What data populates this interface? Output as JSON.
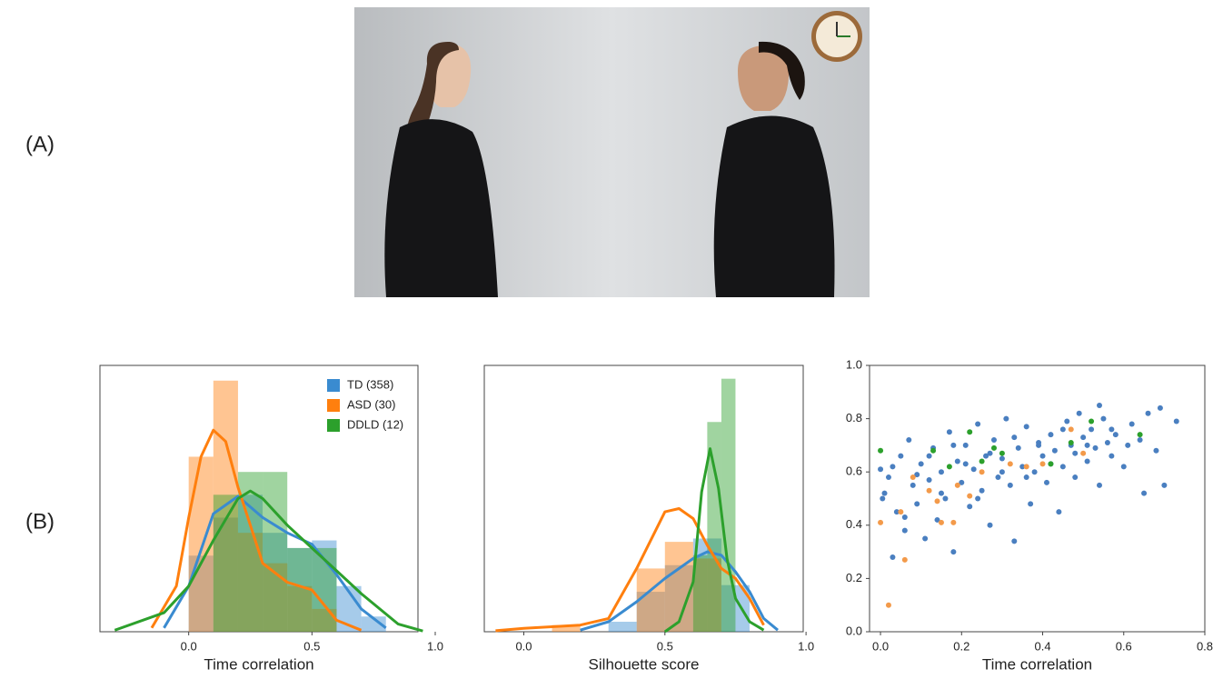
{
  "panels": {
    "a": "(A)",
    "b": "(B)"
  },
  "chart_data": [
    {
      "type": "histogram",
      "xlabel": "Time correlation",
      "xlim": [
        -0.36,
        0.93
      ],
      "ylim": [
        0,
        3.5
      ],
      "xticks": [
        {
          "value": 0,
          "label": "0.0"
        },
        0.5,
        {
          "value": 1,
          "label": "1.0"
        }
      ],
      "legend": "upper right",
      "series": [
        {
          "name": "TD (358)",
          "color": "#3a8bd0",
          "bins": [
            0.0,
            0.1,
            0.2,
            0.3,
            0.4,
            0.5,
            0.6,
            0.7,
            0.8
          ],
          "values": [
            1.0,
            1.5,
            1.8,
            1.3,
            1.1,
            1.2,
            0.6,
            0.2
          ],
          "kde_x": [
            -0.1,
            0.0,
            0.1,
            0.2,
            0.3,
            0.4,
            0.5,
            0.6,
            0.7,
            0.8
          ],
          "kde_values": [
            0.05,
            0.6,
            1.55,
            1.78,
            1.5,
            1.3,
            1.15,
            0.75,
            0.3,
            0.05
          ]
        },
        {
          "name": "ASD (30)",
          "color": "#ff7f0e",
          "bins": [
            0.0,
            0.1,
            0.2,
            0.3,
            0.4,
            0.5,
            0.6
          ],
          "values": [
            2.3,
            3.3,
            1.3,
            0.9,
            0.6,
            0.3
          ],
          "kde_x": [
            -0.15,
            -0.05,
            0.0,
            0.05,
            0.1,
            0.15,
            0.2,
            0.3,
            0.4,
            0.5,
            0.6,
            0.7
          ],
          "kde_values": [
            0.05,
            0.6,
            1.5,
            2.3,
            2.65,
            2.5,
            1.9,
            0.9,
            0.65,
            0.55,
            0.15,
            0.02
          ]
        },
        {
          "name": "DDLD (12)",
          "color": "#2ca02c",
          "bins": [
            0.1,
            0.2,
            0.3,
            0.4,
            0.5,
            0.6
          ],
          "values": [
            1.8,
            2.1,
            2.1,
            1.1,
            1.1
          ],
          "kde_x": [
            -0.3,
            -0.1,
            0.0,
            0.1,
            0.2,
            0.25,
            0.3,
            0.4,
            0.5,
            0.6,
            0.7,
            0.85,
            0.95
          ],
          "kde_values": [
            0.02,
            0.25,
            0.6,
            1.2,
            1.75,
            1.85,
            1.75,
            1.4,
            1.1,
            0.8,
            0.5,
            0.1,
            0.01
          ]
        }
      ]
    },
    {
      "type": "histogram",
      "xlabel": "Silhouette score",
      "xlim": [
        -0.14,
        0.99
      ],
      "ylim": [
        0,
        8
      ],
      "xticks": [
        {
          "value": 0,
          "label": "0.0"
        },
        0.5,
        {
          "value": 1,
          "label": "1.0"
        }
      ],
      "series": [
        {
          "color": "#3a8bd0",
          "bins": [
            0.3,
            0.4,
            0.5,
            0.6,
            0.7,
            0.8
          ],
          "values": [
            0.3,
            1.2,
            2.0,
            2.8,
            1.4
          ],
          "kde_x": [
            0.2,
            0.3,
            0.4,
            0.5,
            0.6,
            0.65,
            0.7,
            0.75,
            0.8,
            0.85,
            0.9
          ],
          "kde_values": [
            0.05,
            0.3,
            0.9,
            1.6,
            2.2,
            2.4,
            2.3,
            1.8,
            1.2,
            0.4,
            0.05
          ]
        },
        {
          "color": "#ff7f0e",
          "bins": [
            0.1,
            0.2,
            0.3,
            0.4,
            0.5,
            0.6,
            0.7
          ],
          "values": [
            0.2,
            0,
            0,
            1.9,
            2.7,
            2.2
          ],
          "kde_x": [
            -0.1,
            0.0,
            0.1,
            0.2,
            0.3,
            0.4,
            0.5,
            0.55,
            0.6,
            0.65,
            0.7,
            0.75,
            0.8,
            0.85
          ],
          "kde_values": [
            0.03,
            0.1,
            0.15,
            0.2,
            0.4,
            1.9,
            3.6,
            3.7,
            3.4,
            2.6,
            1.9,
            1.6,
            1.0,
            0.2
          ]
        },
        {
          "color": "#2ca02c",
          "bins": [
            0.6,
            0.65,
            0.7,
            0.75
          ],
          "values": [
            2.3,
            6.3,
            7.6
          ],
          "kde_x": [
            0.5,
            0.55,
            0.6,
            0.63,
            0.66,
            0.69,
            0.72,
            0.75,
            0.8,
            0.85
          ],
          "kde_values": [
            0,
            0.3,
            1.5,
            4.2,
            5.5,
            4.3,
            2.2,
            1.0,
            0.3,
            0.05
          ]
        }
      ]
    },
    {
      "type": "scatter",
      "xlabel": "Time correlation",
      "xlim": [
        -0.027,
        0.8
      ],
      "ylim": [
        0,
        1
      ],
      "xticks": [
        {
          "value": 0,
          "label": "0.0"
        },
        0.2,
        0.4,
        0.6,
        0.8
      ],
      "yticks": [
        {
          "value": 0,
          "label": "0.0"
        },
        0.2,
        0.4,
        0.6,
        0.8,
        {
          "value": 1,
          "label": "1.0"
        }
      ],
      "series": [
        {
          "color": "#4a7fc0",
          "x": [
            0.0,
            0.01,
            0.02,
            0.03,
            0.04,
            0.05,
            0.06,
            0.07,
            0.08,
            0.09,
            0.1,
            0.11,
            0.12,
            0.13,
            0.14,
            0.15,
            0.16,
            0.17,
            0.18,
            0.19,
            0.2,
            0.21,
            0.22,
            0.23,
            0.24,
            0.25,
            0.26,
            0.27,
            0.28,
            0.29,
            0.3,
            0.31,
            0.32,
            0.33,
            0.34,
            0.35,
            0.36,
            0.37,
            0.38,
            0.39,
            0.4,
            0.41,
            0.42,
            0.43,
            0.44,
            0.45,
            0.46,
            0.47,
            0.48,
            0.49,
            0.5,
            0.51,
            0.52,
            0.53,
            0.54,
            0.55,
            0.56,
            0.57,
            0.58,
            0.6,
            0.62,
            0.64,
            0.66,
            0.68,
            0.7,
            0.73,
            0.005,
            0.03,
            0.06,
            0.09,
            0.12,
            0.15,
            0.18,
            0.21,
            0.24,
            0.27,
            0.3,
            0.33,
            0.36,
            0.39,
            0.42,
            0.45,
            0.48,
            0.51,
            0.54,
            0.57,
            0.61,
            0.65,
            0.69
          ],
          "values": [
            0.61,
            0.52,
            0.58,
            0.28,
            0.45,
            0.66,
            0.38,
            0.72,
            0.55,
            0.48,
            0.63,
            0.35,
            0.57,
            0.69,
            0.42,
            0.6,
            0.5,
            0.75,
            0.3,
            0.64,
            0.56,
            0.7,
            0.47,
            0.61,
            0.78,
            0.53,
            0.66,
            0.4,
            0.72,
            0.58,
            0.65,
            0.8,
            0.55,
            0.34,
            0.69,
            0.62,
            0.77,
            0.48,
            0.6,
            0.71,
            0.66,
            0.56,
            0.74,
            0.68,
            0.45,
            0.62,
            0.79,
            0.7,
            0.58,
            0.82,
            0.73,
            0.64,
            0.76,
            0.69,
            0.55,
            0.8,
            0.71,
            0.66,
            0.74,
            0.62,
            0.78,
            0.72,
            0.82,
            0.68,
            0.55,
            0.79,
            0.5,
            0.62,
            0.43,
            0.59,
            0.66,
            0.52,
            0.7,
            0.63,
            0.5,
            0.67,
            0.6,
            0.73,
            0.58,
            0.7,
            0.63,
            0.76,
            0.67,
            0.7,
            0.85,
            0.76,
            0.7,
            0.52,
            0.84
          ]
        },
        {
          "color": "#f39a4a",
          "x": [
            0.0,
            0.02,
            0.05,
            0.06,
            0.08,
            0.12,
            0.14,
            0.15,
            0.18,
            0.19,
            0.22,
            0.25,
            0.32,
            0.36,
            0.4,
            0.47,
            0.5
          ],
          "values": [
            0.41,
            0.1,
            0.45,
            0.27,
            0.58,
            0.53,
            0.49,
            0.41,
            0.41,
            0.55,
            0.51,
            0.6,
            0.63,
            0.62,
            0.63,
            0.76,
            0.67
          ]
        },
        {
          "color": "#2ca02c",
          "x": [
            0.0,
            0.13,
            0.17,
            0.22,
            0.25,
            0.28,
            0.3,
            0.42,
            0.47,
            0.52,
            0.64
          ],
          "values": [
            0.68,
            0.68,
            0.62,
            0.75,
            0.64,
            0.69,
            0.67,
            0.63,
            0.71,
            0.79,
            0.74
          ]
        }
      ]
    }
  ]
}
